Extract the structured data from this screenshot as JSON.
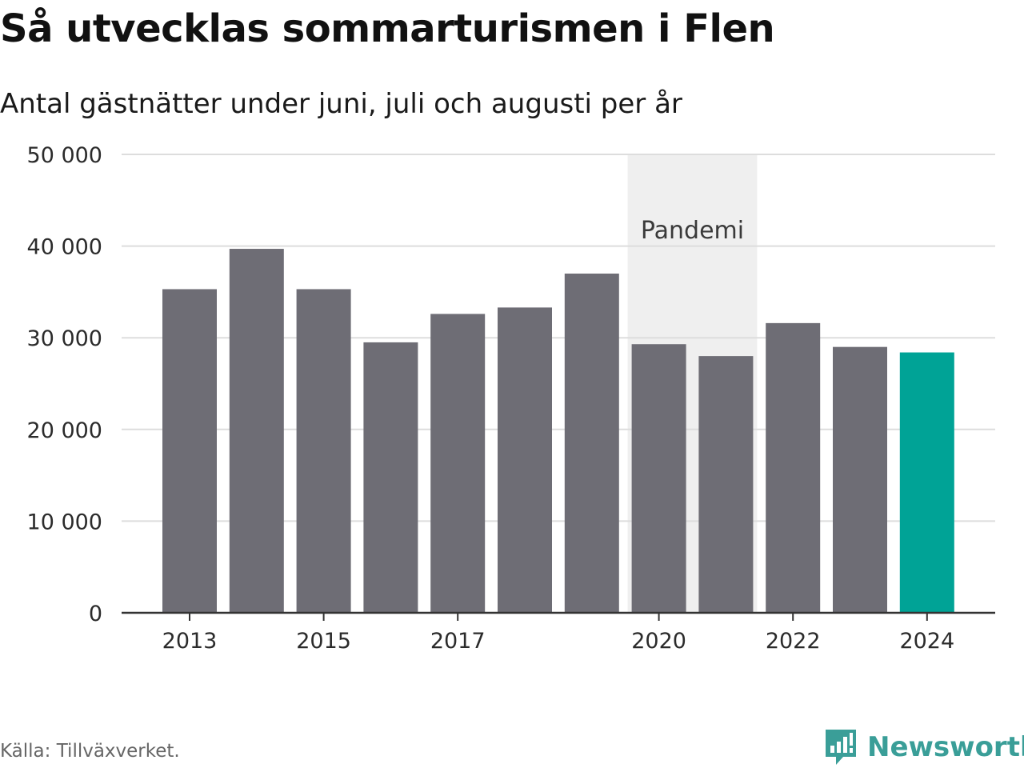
{
  "header": {
    "title": "Så utvecklas sommarturismen i Flen",
    "subtitle": "Antal gästnätter under juni, juli och augusti per år"
  },
  "footer": {
    "source": "Källa: Tillväxverket.",
    "brand": "Newsworthy",
    "brand_icon": "bar-chart-speech-bubble-icon"
  },
  "chart_data": {
    "type": "bar",
    "categories": [
      "2013",
      "2014",
      "2015",
      "2016",
      "2017",
      "2018",
      "2019",
      "2020",
      "2021",
      "2022",
      "2023",
      "2024"
    ],
    "values": [
      35300,
      39700,
      35300,
      29500,
      32600,
      33300,
      37000,
      29300,
      28000,
      31600,
      29000,
      28400
    ],
    "x_tick_labels": [
      "2013",
      "2015",
      "2017",
      "2020",
      "2022",
      "2024"
    ],
    "y_ticks": [
      0,
      10000,
      20000,
      30000,
      40000,
      50000
    ],
    "y_tick_labels": [
      "0",
      "10 000",
      "20 000",
      "30 000",
      "40 000",
      "50 000"
    ],
    "ylim": [
      0,
      50000
    ],
    "grid": true,
    "colors": {
      "default": "#6e6d75",
      "highlight": "#00a396",
      "grid": "#dddddd",
      "shade": "#efefef"
    },
    "highlight_category": "2024",
    "annotations": [
      {
        "label": "Pandemi",
        "from": "2020",
        "to": "2021"
      }
    ]
  }
}
